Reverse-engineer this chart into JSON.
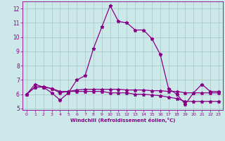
{
  "title": "",
  "xlabel": "Windchill (Refroidissement éolien,°C)",
  "xlim": [
    -0.5,
    23.5
  ],
  "ylim": [
    4.9,
    12.5
  ],
  "yticks": [
    5,
    6,
    7,
    8,
    9,
    10,
    11,
    12
  ],
  "xticks": [
    0,
    1,
    2,
    3,
    4,
    5,
    6,
    7,
    8,
    9,
    10,
    11,
    12,
    13,
    14,
    15,
    16,
    17,
    18,
    19,
    20,
    21,
    22,
    23
  ],
  "bg_color": "#cce8e8",
  "grid_color": "#aacccc",
  "line_color": "#880088",
  "series1_x": [
    0,
    1,
    2,
    3,
    4,
    5,
    6,
    7,
    8,
    9,
    10,
    11,
    12,
    13,
    14,
    15,
    16,
    17,
    18,
    19,
    20,
    21,
    22,
    23
  ],
  "series1_y": [
    6.0,
    6.7,
    6.5,
    6.1,
    5.6,
    6.1,
    7.0,
    7.3,
    9.2,
    10.7,
    12.2,
    11.1,
    11.0,
    10.5,
    10.5,
    9.9,
    8.8,
    6.4,
    6.0,
    5.3,
    6.1,
    6.7,
    6.2,
    6.2
  ],
  "series2_x": [
    0,
    1,
    2,
    3,
    4,
    5,
    6,
    7,
    8,
    9,
    10,
    11,
    12,
    13,
    14,
    15,
    16,
    17,
    18,
    19,
    20,
    21,
    22,
    23
  ],
  "series2_y": [
    6.0,
    6.5,
    6.5,
    6.4,
    6.1,
    6.2,
    6.3,
    6.35,
    6.35,
    6.35,
    6.35,
    6.35,
    6.3,
    6.3,
    6.3,
    6.25,
    6.25,
    6.2,
    6.2,
    6.1,
    6.1,
    6.1,
    6.1,
    6.1
  ],
  "series3_x": [
    0,
    1,
    2,
    3,
    4,
    5,
    6,
    7,
    8,
    9,
    10,
    11,
    12,
    13,
    14,
    15,
    16,
    17,
    18,
    19,
    20,
    21,
    22,
    23
  ],
  "series3_y": [
    6.0,
    6.5,
    6.55,
    6.4,
    6.2,
    6.2,
    6.2,
    6.2,
    6.2,
    6.2,
    6.1,
    6.1,
    6.1,
    6.0,
    6.0,
    5.95,
    5.9,
    5.8,
    5.7,
    5.5,
    5.5,
    5.5,
    5.5,
    5.5
  ]
}
